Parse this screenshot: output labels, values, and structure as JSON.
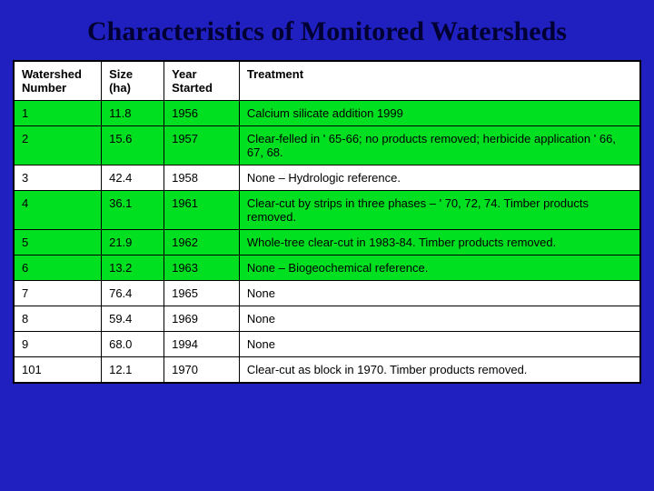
{
  "title": "Characteristics of Monitored Watersheds",
  "background_color": "#2020c0",
  "title_color": "#000033",
  "highlight_color": "#00e020",
  "cell_bg": "#ffffff",
  "border_color": "#000000",
  "title_fontsize": 30,
  "cell_fontsize": 13,
  "columns": [
    {
      "header": "Watershed Number",
      "width_pct": 14
    },
    {
      "header": "Size (ha)",
      "width_pct": 10
    },
    {
      "header": "Year Started",
      "width_pct": 12
    },
    {
      "header": "Treatment",
      "width_pct": 64
    }
  ],
  "rows": [
    {
      "highlight": true,
      "cells": [
        "1",
        "11.8",
        "1956",
        "Calcium silicate addition 1999"
      ]
    },
    {
      "highlight": true,
      "cells": [
        "2",
        "15.6",
        "1957",
        "Clear-felled in ' 65-66; no products removed; herbicide application ' 66, 67, 68."
      ]
    },
    {
      "highlight": false,
      "cells": [
        "3",
        "42.4",
        "1958",
        "None – Hydrologic reference."
      ]
    },
    {
      "highlight": true,
      "cells": [
        "4",
        "36.1",
        "1961",
        "Clear-cut by strips in three phases – ' 70, 72, 74. Timber products removed."
      ]
    },
    {
      "highlight": true,
      "cells": [
        "5",
        "21.9",
        "1962",
        "Whole-tree clear-cut in 1983-84. Timber products removed."
      ]
    },
    {
      "highlight": true,
      "cells": [
        "6",
        "13.2",
        "1963",
        "None – Biogeochemical reference."
      ]
    },
    {
      "highlight": false,
      "cells": [
        "7",
        "76.4",
        "1965",
        "None"
      ]
    },
    {
      "highlight": false,
      "cells": [
        "8",
        "59.4",
        "1969",
        "None"
      ]
    },
    {
      "highlight": false,
      "cells": [
        "9",
        "68.0",
        "1994",
        "None"
      ]
    },
    {
      "highlight": false,
      "cells": [
        "101",
        "12.1",
        "1970",
        "Clear-cut as block in 1970. Timber products removed."
      ]
    }
  ]
}
